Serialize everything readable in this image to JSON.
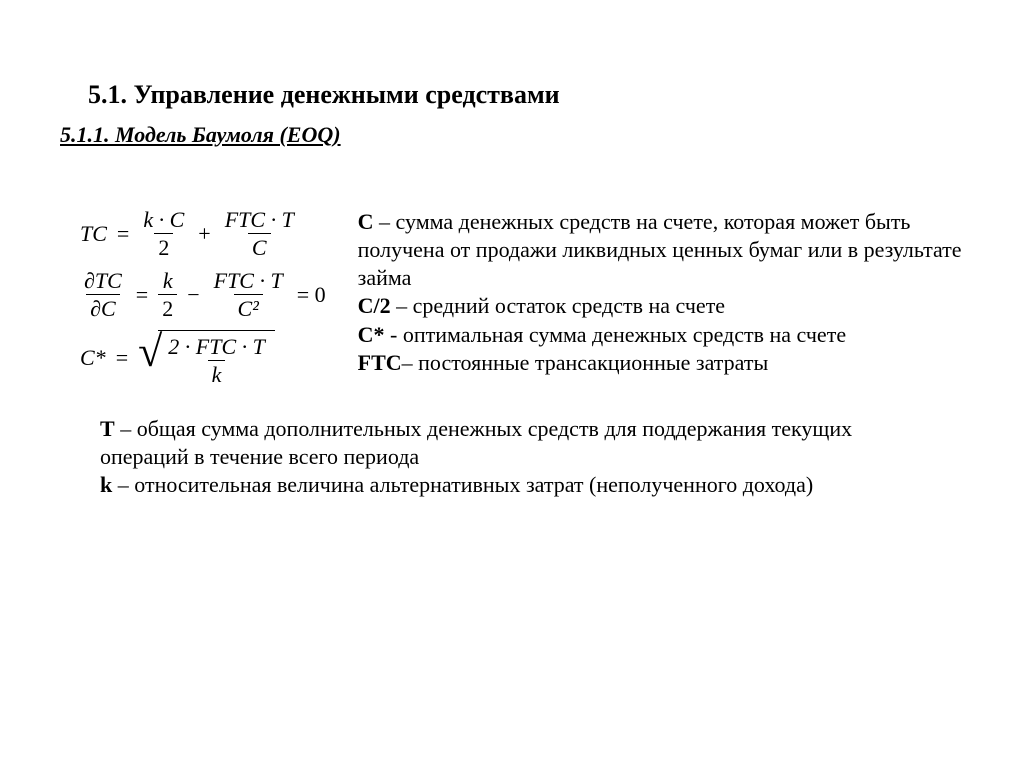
{
  "heading": "5.1. Управление денежными средствами",
  "subheading": "5.1.1. Модель Баумоля (EOQ)",
  "formulas": {
    "eq1": {
      "lhs": "TC",
      "eq": "=",
      "f1n": "k · C",
      "f1d": "2",
      "plus": "+",
      "f2n": "FTC · T",
      "f2d": "C"
    },
    "eq2": {
      "lhs_n": "∂TC",
      "lhs_d": "∂C",
      "eq": "=",
      "f1n": "k",
      "f1d": "2",
      "minus": "−",
      "f2n": "FTC · T",
      "f2d": "C²",
      "tail": "= 0"
    },
    "eq3": {
      "lhs": "C*",
      "eq": "=",
      "rad_n": "2 · FTC · T",
      "rad_d": "k"
    }
  },
  "definitions": {
    "c_label": "С",
    "c_text": " – сумма денежных средств на счете, которая может быть получена от продажи ликвидных ценных бумаг или в результате займа",
    "c2_label": "С/2",
    "c2_text": " – средний остаток средств на счете",
    "cstar_label": "С*",
    "cstar_text": " - оптимальная сумма денежных средств на счете",
    "ftc_label": "FTC",
    "ftc_text": "– постоянные трансакционные затраты",
    "t_label": "T",
    "t_text": " – общая сумма дополнительных денежных средств для поддержания текущих операций в течение всего периода",
    "k_label": "k",
    "k_text": " – относительная величина альтернативных затрат (неполученного дохода)"
  },
  "colors": {
    "text": "#000000",
    "bg": "#ffffff"
  }
}
